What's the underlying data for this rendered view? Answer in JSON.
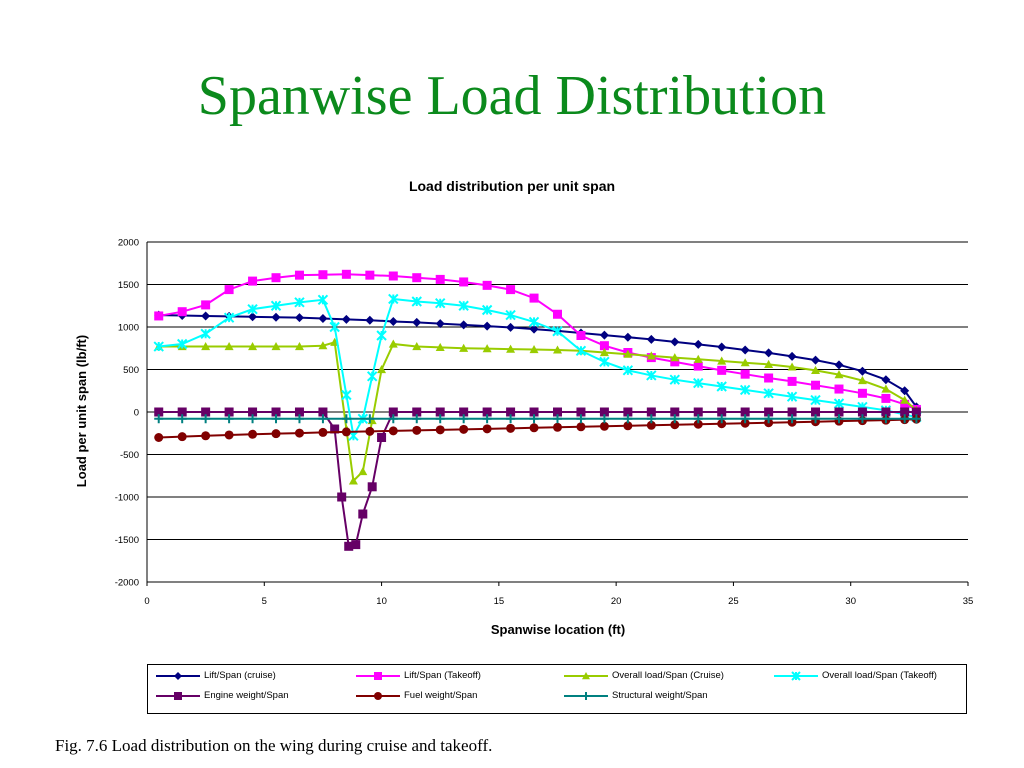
{
  "slide": {
    "title": "Spanwise Load Distribution",
    "caption": "Fig. 7.6 Load distribution on the wing during cruise and takeoff."
  },
  "chart_data": {
    "type": "line",
    "title": "Load distribution per unit span",
    "xlabel": "Spanwise location (ft)",
    "ylabel": "Load per unit span (lb/ft)",
    "xlim": [
      0,
      35
    ],
    "ylim": [
      -2000,
      2000
    ],
    "xticks": [
      "0",
      "5",
      "10",
      "15",
      "20",
      "25",
      "30",
      "35"
    ],
    "yticks": [
      "2000",
      "1500",
      "1000",
      "500",
      "0",
      "-500",
      "-1000",
      "-1500",
      "-2000"
    ],
    "grid": "horizontal",
    "legend_position": "bottom",
    "series": [
      {
        "name": "Lift/Span (cruise)",
        "color": "#000080",
        "marker": "diamond",
        "x": [
          0.5,
          1.5,
          2.5,
          3.5,
          4.5,
          5.5,
          6.5,
          7.5,
          8.5,
          9.5,
          10.5,
          11.5,
          12.5,
          13.5,
          14.5,
          15.5,
          16.5,
          17.5,
          18.5,
          19.5,
          20.5,
          21.5,
          22.5,
          23.5,
          24.5,
          25.5,
          26.5,
          27.5,
          28.5,
          29.5,
          30.5,
          31.5,
          32.3,
          32.8
        ],
        "y": [
          1140,
          1135,
          1130,
          1125,
          1120,
          1115,
          1110,
          1100,
          1090,
          1080,
          1065,
          1055,
          1040,
          1025,
          1010,
          995,
          975,
          955,
          930,
          905,
          880,
          855,
          825,
          795,
          765,
          730,
          695,
          655,
          610,
          555,
          480,
          380,
          250,
          60
        ]
      },
      {
        "name": "Lift/Span (Takeoff)",
        "color": "#ff00ff",
        "marker": "square",
        "x": [
          0.5,
          1.5,
          2.5,
          3.5,
          4.5,
          5.5,
          6.5,
          7.5,
          8.5,
          9.5,
          10.5,
          11.5,
          12.5,
          13.5,
          14.5,
          15.5,
          16.5,
          17.5,
          18.5,
          19.5,
          20.5,
          21.5,
          22.5,
          23.5,
          24.5,
          25.5,
          26.5,
          27.5,
          28.5,
          29.5,
          30.5,
          31.5,
          32.3,
          32.8
        ],
        "y": [
          1130,
          1180,
          1260,
          1440,
          1540,
          1580,
          1610,
          1615,
          1620,
          1610,
          1600,
          1580,
          1560,
          1530,
          1490,
          1440,
          1340,
          1150,
          900,
          780,
          700,
          640,
          590,
          540,
          490,
          445,
          400,
          360,
          315,
          270,
          220,
          160,
          90,
          30
        ]
      },
      {
        "name": "Overall load/Span (Cruise)",
        "color": "#99cc00",
        "marker": "triangle",
        "x": [
          0.5,
          1.5,
          2.5,
          3.5,
          4.5,
          5.5,
          6.5,
          7.5,
          8.0,
          8.5,
          8.8,
          9.2,
          9.6,
          10.0,
          10.5,
          11.5,
          12.5,
          13.5,
          14.5,
          15.5,
          16.5,
          17.5,
          18.5,
          19.5,
          20.5,
          21.5,
          22.5,
          23.5,
          24.5,
          25.5,
          26.5,
          27.5,
          28.5,
          29.5,
          30.5,
          31.5,
          32.3,
          32.8
        ],
        "y": [
          770,
          770,
          770,
          770,
          770,
          770,
          770,
          780,
          820,
          -200,
          -810,
          -700,
          -100,
          500,
          800,
          770,
          760,
          750,
          745,
          740,
          735,
          730,
          720,
          700,
          680,
          660,
          640,
          620,
          600,
          580,
          560,
          530,
          490,
          440,
          370,
          270,
          140,
          20
        ]
      },
      {
        "name": "Overall load/Span (Takeoff)",
        "color": "#00ffff",
        "marker": "x",
        "x": [
          0.5,
          1.5,
          2.5,
          3.5,
          4.5,
          5.5,
          6.5,
          7.5,
          8.0,
          8.5,
          8.8,
          9.2,
          9.6,
          10.0,
          10.5,
          11.5,
          12.5,
          13.5,
          14.5,
          15.5,
          16.5,
          17.5,
          18.5,
          19.5,
          20.5,
          21.5,
          22.5,
          23.5,
          24.5,
          25.5,
          26.5,
          27.5,
          28.5,
          29.5,
          30.5,
          31.5,
          32.3,
          32.8
        ],
        "y": [
          770,
          800,
          920,
          1110,
          1210,
          1250,
          1290,
          1320,
          1000,
          200,
          -280,
          -80,
          420,
          900,
          1330,
          1300,
          1280,
          1250,
          1200,
          1140,
          1060,
          950,
          720,
          590,
          490,
          430,
          380,
          340,
          300,
          260,
          220,
          180,
          140,
          100,
          60,
          20,
          -30,
          -60
        ]
      },
      {
        "name": "Engine weight/Span",
        "color": "#660066",
        "marker": "square",
        "x": [
          0.5,
          1.5,
          2.5,
          3.5,
          4.5,
          5.5,
          6.5,
          7.5,
          8.0,
          8.3,
          8.6,
          8.9,
          9.2,
          9.6,
          10.0,
          10.5,
          11.5,
          12.5,
          13.5,
          14.5,
          15.5,
          16.5,
          17.5,
          18.5,
          19.5,
          20.5,
          21.5,
          22.5,
          23.5,
          24.5,
          25.5,
          26.5,
          27.5,
          28.5,
          29.5,
          30.5,
          31.5,
          32.3,
          32.8
        ],
        "y": [
          0,
          0,
          0,
          0,
          0,
          0,
          0,
          0,
          -200,
          -1000,
          -1580,
          -1560,
          -1200,
          -880,
          -300,
          0,
          0,
          0,
          0,
          0,
          0,
          0,
          0,
          0,
          0,
          0,
          0,
          0,
          0,
          0,
          0,
          0,
          0,
          0,
          0,
          0,
          0,
          0,
          0
        ]
      },
      {
        "name": "Fuel weight/Span",
        "color": "#800000",
        "marker": "circle",
        "x": [
          0.5,
          1.5,
          2.5,
          3.5,
          4.5,
          5.5,
          6.5,
          7.5,
          8.5,
          9.5,
          10.5,
          11.5,
          12.5,
          13.5,
          14.5,
          15.5,
          16.5,
          17.5,
          18.5,
          19.5,
          20.5,
          21.5,
          22.5,
          23.5,
          24.5,
          25.5,
          26.5,
          27.5,
          28.5,
          29.5,
          30.5,
          31.5,
          32.3,
          32.8
        ],
        "y": [
          -300,
          -290,
          -280,
          -270,
          -262,
          -255,
          -248,
          -240,
          -234,
          -228,
          -222,
          -216,
          -210,
          -204,
          -198,
          -192,
          -186,
          -180,
          -174,
          -168,
          -162,
          -156,
          -150,
          -144,
          -138,
          -132,
          -126,
          -120,
          -114,
          -108,
          -102,
          -96,
          -90,
          -85
        ]
      },
      {
        "name": "Structural weight/Span",
        "color": "#008080",
        "marker": "plus",
        "x": [
          0.5,
          1.5,
          2.5,
          3.5,
          4.5,
          5.5,
          6.5,
          7.5,
          8.5,
          9.5,
          10.5,
          11.5,
          12.5,
          13.5,
          14.5,
          15.5,
          16.5,
          17.5,
          18.5,
          19.5,
          20.5,
          21.5,
          22.5,
          23.5,
          24.5,
          25.5,
          26.5,
          27.5,
          28.5,
          29.5,
          30.5,
          31.5,
          32.3,
          32.8
        ],
        "y": [
          -80,
          -80,
          -80,
          -80,
          -80,
          -80,
          -80,
          -80,
          -80,
          -80,
          -80,
          -80,
          -80,
          -80,
          -80,
          -80,
          -80,
          -80,
          -80,
          -80,
          -80,
          -80,
          -80,
          -80,
          -80,
          -80,
          -80,
          -80,
          -80,
          -80,
          -80,
          -80,
          -80,
          -80
        ]
      }
    ]
  }
}
